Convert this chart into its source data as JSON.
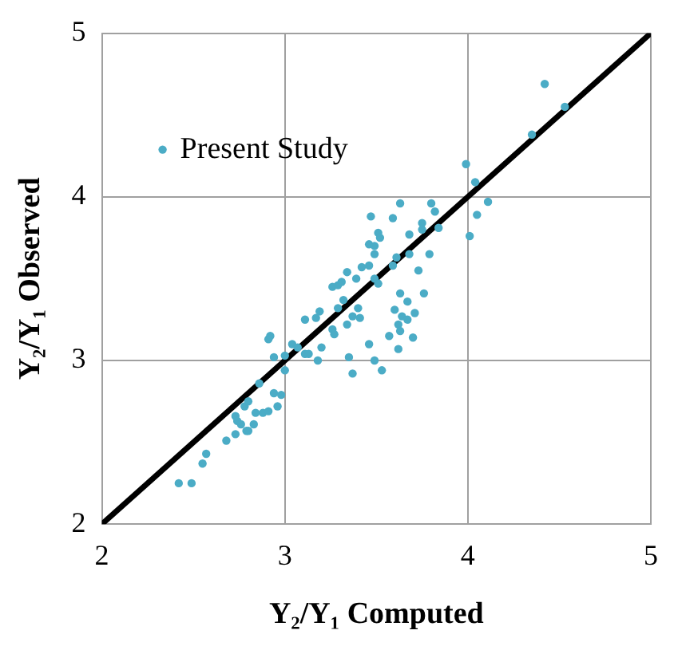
{
  "chart_data": {
    "type": "scatter",
    "xlabel": "Y₂/Y₁ Computed",
    "ylabel": "Y₂/Y₁ Observed",
    "xlim": [
      2,
      5
    ],
    "ylim": [
      2,
      5
    ],
    "xticks": [
      2,
      3,
      4,
      5
    ],
    "yticks": [
      2,
      3,
      4,
      5
    ],
    "grid": true,
    "legend": "top left",
    "marker": "circle",
    "series": [
      {
        "name": "Present Study",
        "color": "#4bacc6",
        "type": "scatter",
        "x": [
          2.42,
          2.49,
          2.55,
          2.57,
          2.68,
          2.73,
          2.73,
          2.74,
          2.76,
          2.79,
          2.8,
          2.78,
          2.8,
          2.83,
          2.84,
          2.88,
          2.91,
          2.86,
          2.96,
          2.94,
          2.98,
          2.91,
          2.92,
          2.94,
          3.0,
          3.0,
          3.04,
          3.07,
          3.11,
          3.13,
          3.11,
          3.17,
          3.19,
          3.2,
          3.18,
          3.26,
          3.27,
          3.29,
          3.32,
          3.26,
          3.29,
          3.31,
          3.34,
          3.34,
          3.39,
          3.37,
          3.4,
          3.41,
          3.35,
          3.37,
          3.42,
          3.46,
          3.46,
          3.49,
          3.53,
          3.49,
          3.51,
          3.47,
          3.46,
          3.49,
          3.49,
          3.51,
          3.52,
          3.57,
          3.6,
          3.59,
          3.61,
          3.63,
          3.62,
          3.63,
          3.62,
          3.64,
          3.67,
          3.67,
          3.7,
          3.71,
          3.59,
          3.63,
          3.68,
          3.68,
          3.73,
          3.76,
          3.75,
          3.75,
          3.79,
          3.8,
          3.82,
          3.84,
          3.99,
          4.01,
          4.04,
          4.05,
          4.11,
          4.35,
          4.42,
          4.53
        ],
        "values": [
          2.25,
          2.25,
          2.37,
          2.43,
          2.51,
          2.55,
          2.66,
          2.63,
          2.61,
          2.57,
          2.57,
          2.72,
          2.75,
          2.61,
          2.68,
          2.68,
          2.69,
          2.86,
          2.72,
          2.8,
          2.79,
          3.13,
          3.15,
          3.02,
          3.03,
          2.94,
          3.1,
          3.08,
          3.04,
          3.04,
          3.25,
          3.26,
          3.3,
          3.08,
          3.0,
          3.19,
          3.16,
          3.32,
          3.37,
          3.45,
          3.46,
          3.48,
          3.54,
          3.22,
          3.5,
          3.27,
          3.32,
          3.26,
          3.02,
          2.92,
          3.57,
          3.58,
          3.1,
          3.0,
          2.94,
          3.5,
          3.47,
          3.88,
          3.71,
          3.7,
          3.65,
          3.78,
          3.75,
          3.15,
          3.31,
          3.58,
          3.63,
          3.41,
          3.22,
          3.18,
          3.07,
          3.27,
          3.36,
          3.25,
          3.14,
          3.29,
          3.87,
          3.96,
          3.77,
          3.65,
          3.55,
          3.41,
          3.84,
          3.8,
          3.65,
          3.96,
          3.91,
          3.81,
          4.2,
          3.76,
          4.09,
          3.89,
          3.97,
          4.38,
          4.69,
          4.55
        ]
      },
      {
        "color": "#000000",
        "type": "line",
        "x": [
          2,
          5
        ],
        "values": [
          2,
          5
        ],
        "marker": "none",
        "line_style": "solid"
      }
    ]
  }
}
